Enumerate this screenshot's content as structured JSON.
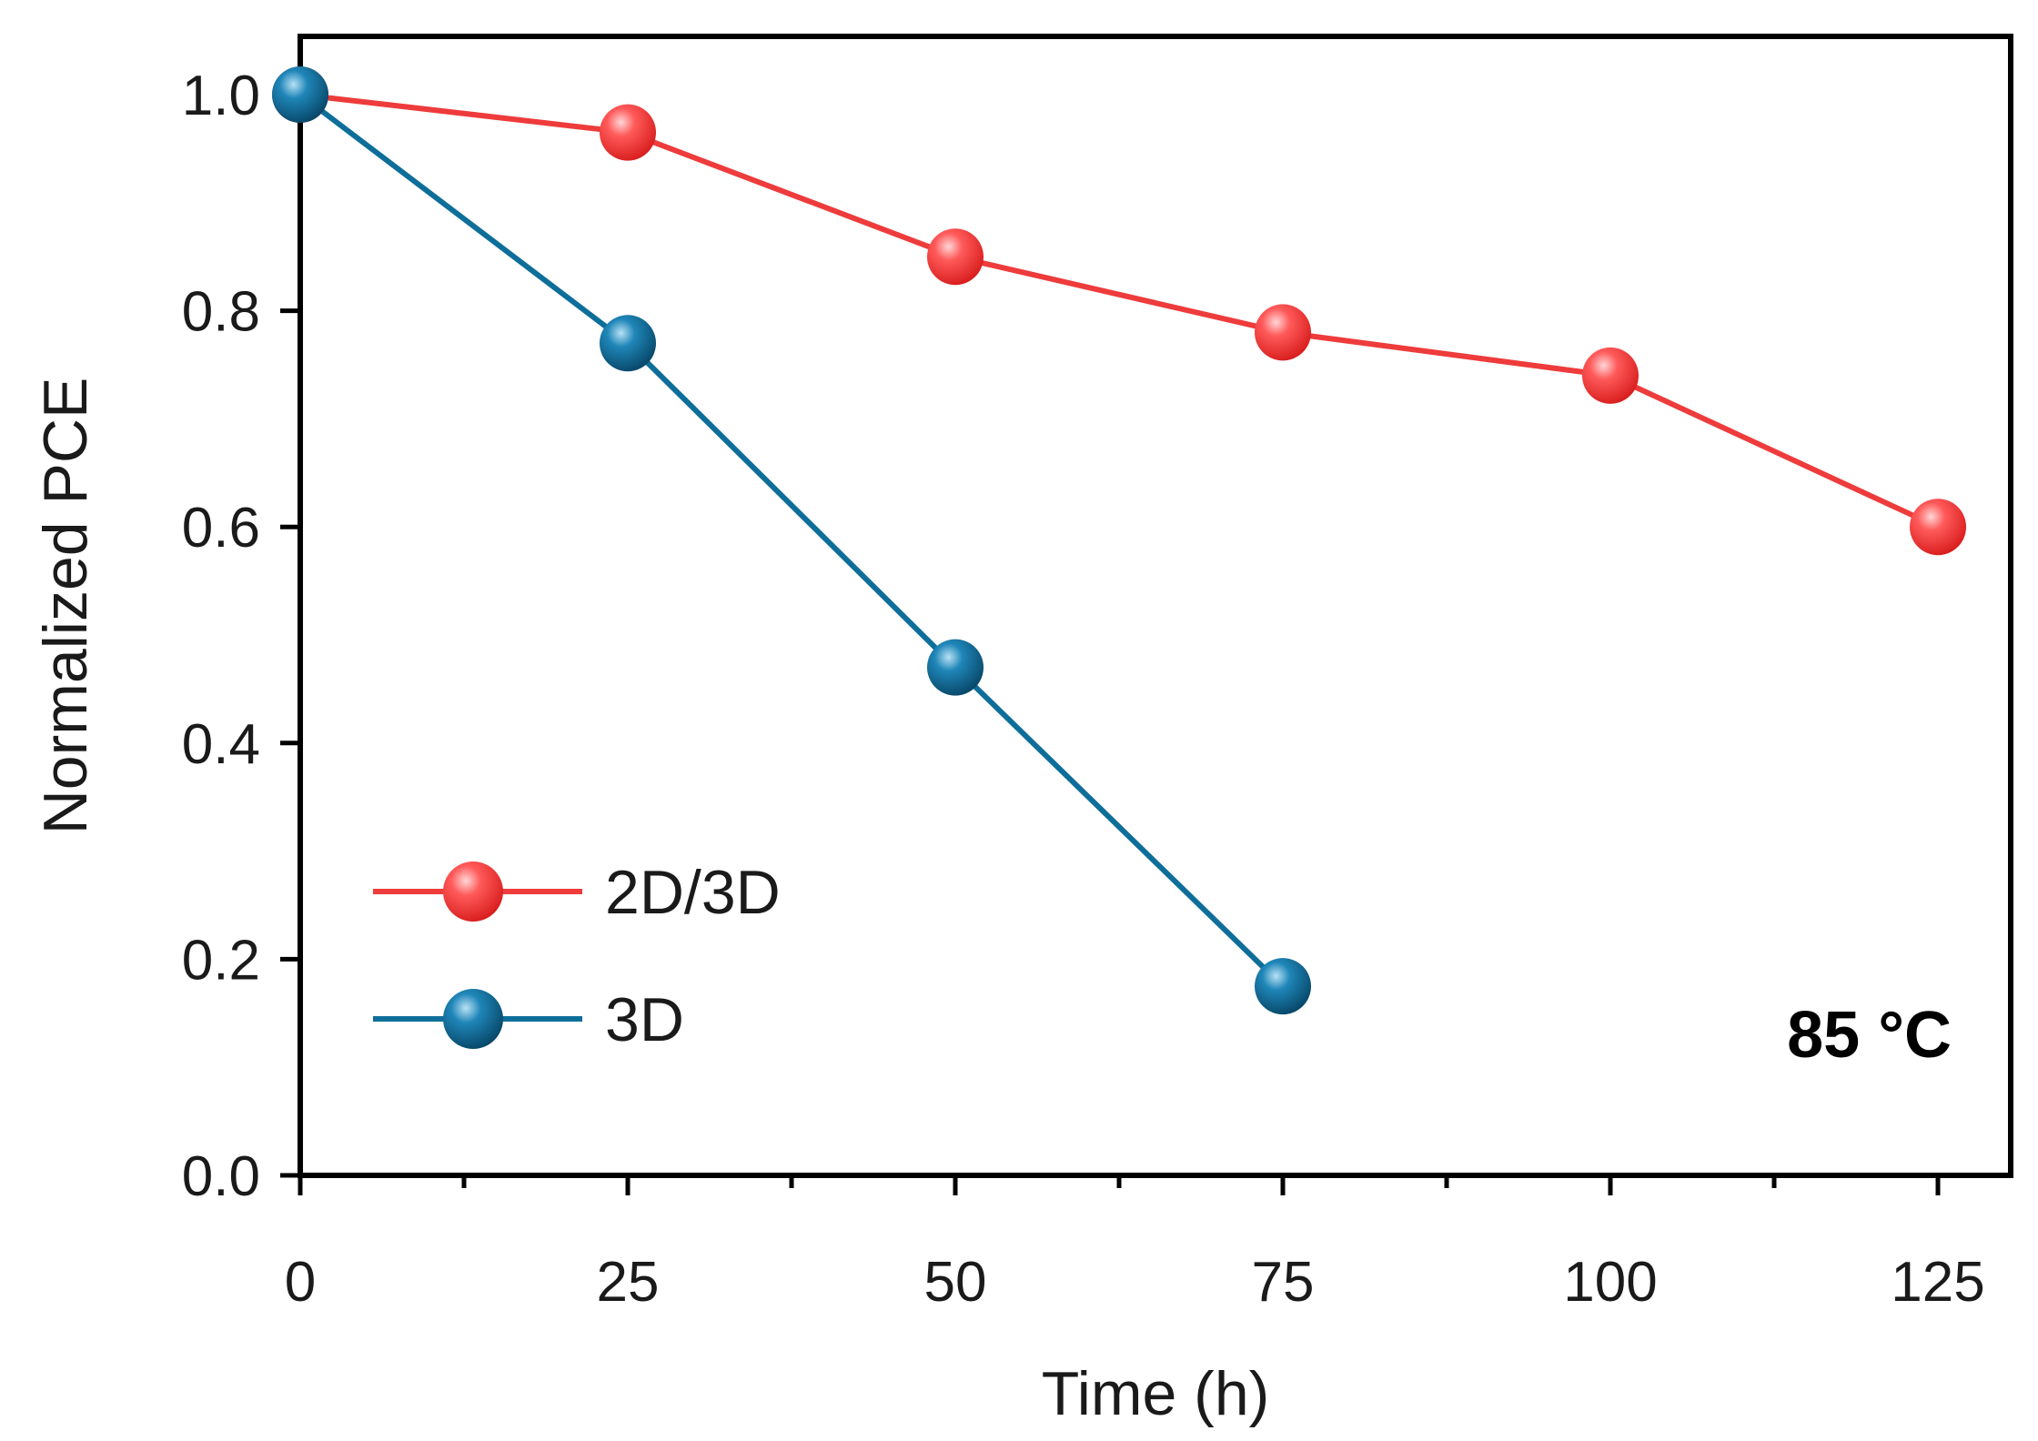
{
  "chart_data": {
    "type": "line",
    "title": "",
    "xlabel": "Time (h)",
    "ylabel": "Normalized PCE",
    "xlim": [
      0,
      130
    ],
    "ylim": [
      0.0,
      1.05
    ],
    "xticks": [
      0,
      25,
      50,
      75,
      100,
      125
    ],
    "xtick_labels": [
      "0",
      "25",
      "50",
      "75",
      "100",
      "125"
    ],
    "yticks": [
      0.0,
      0.2,
      0.4,
      0.6,
      0.8,
      1.0
    ],
    "ytick_labels": [
      "0.0",
      "0.2",
      "0.4",
      "0.6",
      "0.8",
      "1.0"
    ],
    "grid": false,
    "legend_position": "bottom-left",
    "annotation": "85 °C",
    "series": [
      {
        "name": "2D/3D",
        "color": "#ee3b3b",
        "x": [
          0,
          25,
          50,
          75,
          100,
          125
        ],
        "y": [
          1.0,
          0.965,
          0.85,
          0.78,
          0.74,
          0.6
        ]
      },
      {
        "name": "3D",
        "color": "#0e6e9a",
        "x": [
          0,
          25,
          50,
          75
        ],
        "y": [
          1.0,
          0.77,
          0.47,
          0.175
        ]
      }
    ]
  }
}
